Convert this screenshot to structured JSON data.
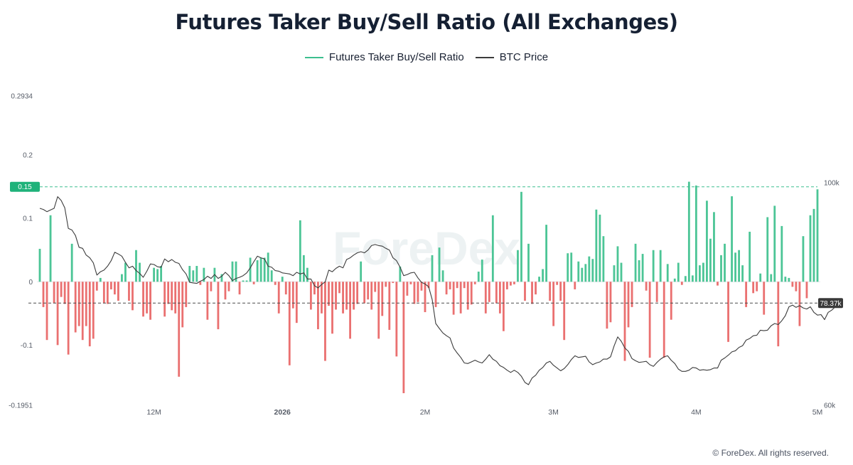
{
  "header": {
    "title": "Futures Taker Buy/Sell Ratio (All Exchanges)"
  },
  "legend": {
    "items": [
      {
        "label": "Futures Taker Buy/Sell Ratio",
        "color": "#3dbf8f"
      },
      {
        "label": "BTC Price",
        "color": "#3c3c3c"
      }
    ]
  },
  "footer": {
    "copyright": "© ForeDex. All rights reserved."
  },
  "watermark": "ForeDex",
  "colors": {
    "positive": "#4cc596",
    "negative": "#ea7070",
    "price_line": "#3c3c3c",
    "threshold": "#3dbf8f",
    "current_price_badge": "#3a3a3a"
  },
  "chart_data": {
    "type": "bar",
    "title": "Futures Taker Buy/Sell Ratio (All Exchanges)",
    "left_axis": {
      "min": -0.1951,
      "max": 0.2934,
      "ticks": [
        "0.2934",
        "0.2",
        "0.15",
        "0.1",
        "0",
        "-0.1",
        "-0.1951"
      ]
    },
    "right_axis": {
      "min": 60000,
      "max": 100000,
      "ticks": [
        "100k",
        "60k"
      ]
    },
    "x_ticks": [
      "12M",
      "2026",
      "2M",
      "3M",
      "4M",
      "5M"
    ],
    "threshold": {
      "value": 0.15,
      "label": "0.15"
    },
    "current_price": {
      "value": 78370,
      "label": "78.37k"
    },
    "series": [
      {
        "name": "Futures Taker Buy/Sell Ratio",
        "type": "bar",
        "values": [
          0.052,
          -0.04,
          -0.092,
          0.105,
          -0.034,
          -0.1,
          -0.024,
          -0.035,
          -0.115,
          0.06,
          -0.08,
          -0.07,
          -0.092,
          -0.07,
          -0.102,
          -0.09,
          -0.014,
          0.006,
          -0.034,
          -0.035,
          -0.012,
          -0.02,
          -0.03,
          0.012,
          0.03,
          -0.03,
          -0.045,
          0.05,
          0.03,
          -0.055,
          -0.05,
          -0.06,
          0.022,
          0.02,
          0.025,
          -0.055,
          -0.035,
          -0.045,
          -0.05,
          -0.15,
          -0.072,
          -0.04,
          0.025,
          0.018,
          0.025,
          -0.005,
          0.022,
          -0.06,
          -0.015,
          0.022,
          -0.075,
          0.012,
          -0.028,
          -0.015,
          0.032,
          0.032,
          -0.02,
          0.002,
          0.002,
          0.038,
          -0.004,
          0.034,
          0.038,
          0.038,
          0.046,
          0.018,
          -0.005,
          -0.05,
          0.008,
          -0.02,
          -0.132,
          -0.042,
          -0.065,
          0.097,
          0.042,
          0.022,
          -0.044,
          -0.02,
          -0.075,
          -0.05,
          -0.125,
          -0.038,
          -0.082,
          -0.044,
          -0.018,
          -0.05,
          -0.044,
          -0.09,
          -0.044,
          -0.035,
          0.032,
          -0.034,
          -0.028,
          -0.044,
          -0.016,
          -0.09,
          -0.054,
          -0.008,
          -0.076,
          -0.002,
          -0.118,
          0.024,
          -0.176,
          -0.022,
          -0.004,
          -0.035,
          -0.032,
          -0.014,
          -0.048,
          -0.01,
          0.042,
          -0.04,
          0.054,
          0.018,
          -0.02,
          -0.012,
          -0.052,
          -0.01,
          -0.05,
          -0.01,
          -0.044,
          -0.036,
          -0.004,
          0.016,
          0.035,
          -0.05,
          -0.032,
          0.105,
          -0.034,
          -0.05,
          -0.078,
          -0.012,
          -0.006,
          -0.004,
          0.05,
          0.142,
          -0.03,
          0.06,
          -0.035,
          -0.02,
          0.008,
          0.02,
          0.09,
          -0.03,
          -0.07,
          -0.005,
          -0.03,
          -0.092,
          0.045,
          0.046,
          -0.012,
          0.032,
          0.022,
          0.028,
          0.04,
          0.036,
          0.114,
          0.106,
          0.072,
          -0.074,
          -0.064,
          0.026,
          0.056,
          0.03,
          -0.125,
          -0.072,
          -0.04,
          0.06,
          0.034,
          0.044,
          -0.014,
          -0.12,
          0.05,
          -0.032,
          0.05,
          -0.12,
          0.028,
          -0.06,
          0.005,
          0.03,
          -0.005,
          0.009,
          0.158,
          0.01,
          0.152,
          0.026,
          0.03,
          0.128,
          0.068,
          0.11,
          -0.006,
          0.042,
          0.06,
          -0.095,
          0.135,
          0.046,
          0.05,
          0.026,
          -0.04,
          0.079,
          -0.018,
          -0.015,
          0.013,
          -0.052,
          0.102,
          0.012,
          0.12,
          -0.102,
          0.088,
          0.008,
          0.006,
          -0.008,
          -0.015,
          -0.07,
          0.072,
          -0.026,
          0.105,
          0.115,
          0.146
        ]
      },
      {
        "name": "BTC Price",
        "type": "line",
        "values": [
          95400,
          95200,
          94800,
          95100,
          95400,
          97500,
          96800,
          95500,
          91800,
          91500,
          90500,
          88400,
          88200,
          87000,
          86500,
          85600,
          83400,
          84000,
          84300,
          85000,
          86000,
          87500,
          87200,
          86800,
          85700,
          84700,
          85000,
          84200,
          83700,
          83000,
          84100,
          85400,
          85300,
          84900,
          84800,
          86300,
          85800,
          86200,
          85700,
          85500,
          84400,
          83600,
          82100,
          82000,
          81900,
          82300,
          82600,
          83200,
          82800,
          83500,
          82800,
          83200,
          83900,
          83300,
          82400,
          82800,
          83000,
          83300,
          83800,
          84700,
          85800,
          86800,
          86500,
          86300,
          85000,
          84800,
          84200,
          84100,
          83800,
          83700,
          83600,
          83300,
          83900,
          83600,
          83800,
          82700,
          82700,
          81500,
          81100,
          81700,
          82200,
          84300,
          84000,
          84600,
          85000,
          84700,
          86200,
          86500,
          87000,
          87400,
          87600,
          87400,
          87900,
          88700,
          88900,
          88700,
          88600,
          88200,
          87900,
          86500,
          86000,
          84800,
          83300,
          83500,
          83800,
          83900,
          82900,
          82100,
          81800,
          81300,
          79000,
          74700,
          73800,
          73000,
          72500,
          72100,
          70300,
          69400,
          68600,
          67600,
          67500,
          67800,
          68100,
          67800,
          67600,
          68300,
          69100,
          68300,
          67900,
          67100,
          66800,
          66300,
          65900,
          66300,
          65900,
          65200,
          64100,
          63700,
          64900,
          65400,
          66300,
          66800,
          67600,
          67900,
          67200,
          66700,
          66200,
          66600,
          67300,
          68200,
          68900,
          68600,
          68700,
          68800,
          67800,
          67300,
          67600,
          67800,
          68300,
          68300,
          68700,
          70700,
          72300,
          71500,
          70300,
          69700,
          68400,
          68000,
          67700,
          67800,
          67900,
          67300,
          67000,
          67700,
          68300,
          68700,
          68900,
          68100,
          67500,
          66500,
          66100,
          66100,
          66300,
          66800,
          66700,
          66300,
          66400,
          66300,
          66400,
          66700,
          66700,
          68100,
          68500,
          69000,
          69600,
          69800,
          70400,
          70700,
          71700,
          72000,
          72500,
          72600,
          73500,
          73400,
          73500,
          74300,
          74700,
          74500,
          75200,
          76100,
          77700,
          78000,
          77600,
          77900,
          77500,
          77300,
          77700,
          76700,
          76200,
          76300,
          75400,
          76700,
          77100,
          77700,
          78370
        ]
      }
    ]
  }
}
